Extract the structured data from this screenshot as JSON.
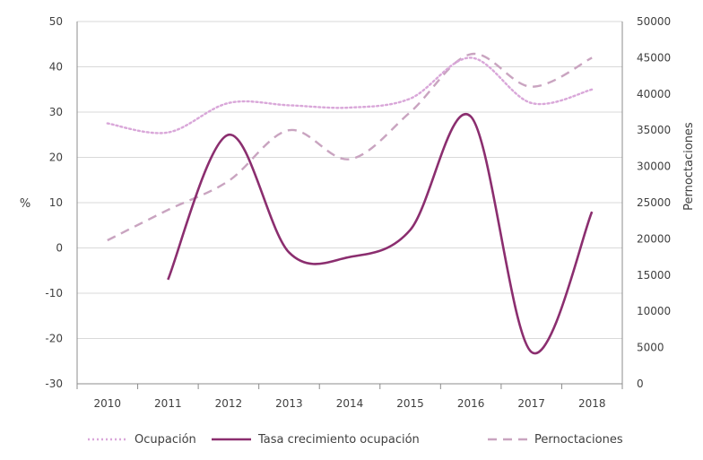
{
  "chart_data": {
    "type": "line",
    "title": "",
    "x": [
      "2010",
      "2011",
      "2012",
      "2013",
      "2014",
      "2015",
      "2016",
      "2017",
      "2018"
    ],
    "xlabel": "",
    "y_left": {
      "label": "%",
      "range": [
        -30,
        50
      ],
      "ticks": [
        50,
        40,
        30,
        20,
        10,
        0,
        -10,
        -20,
        -30
      ]
    },
    "y_right": {
      "label": "Pernoctaciones",
      "range": [
        0,
        50000
      ],
      "ticks": [
        50000,
        45000,
        40000,
        35000,
        30000,
        25000,
        20000,
        15000,
        10000,
        5000,
        0
      ]
    },
    "grid": true,
    "legend_position": "bottom",
    "series": [
      {
        "name": "Ocupación",
        "axis": "left",
        "style": "dotted",
        "color": "#d9a7d9",
        "values": [
          27.5,
          25.5,
          32,
          31.5,
          31,
          33,
          42,
          32,
          35
        ]
      },
      {
        "name": "Tasa crecimiento ocupación",
        "axis": "left",
        "style": "solid",
        "color": "#8b2e6f",
        "values": [
          null,
          -7,
          25,
          -1,
          -2,
          4,
          29,
          -23,
          8
        ]
      },
      {
        "name": "Pernoctaciones",
        "axis": "right",
        "style": "dashed",
        "color": "#c9a4c0",
        "values": [
          19800,
          24000,
          28000,
          35000,
          31000,
          37500,
          45500,
          41000,
          45000
        ]
      }
    ]
  }
}
